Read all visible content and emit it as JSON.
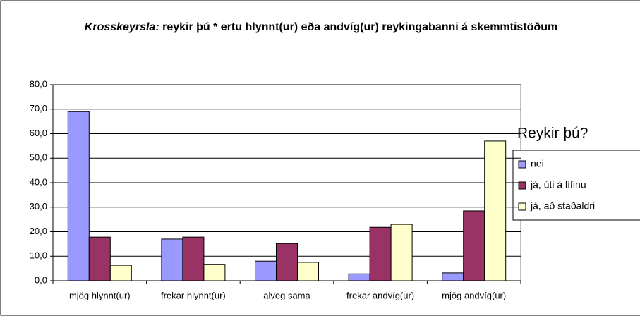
{
  "chart_data": {
    "type": "bar",
    "title": {
      "emphasis": "Krosskeyrsla:",
      "text": "reykir þú * ertu hlynnt(ur) eða andvíg(ur) reykingabanni á skemmtistöðum"
    },
    "categories": [
      "mjög hlynnt(ur)",
      "frekar hlynnt(ur)",
      "alveg sama",
      "frekar andvíg(ur)",
      "mjög andvíg(ur)"
    ],
    "legend_title": "Reykir þú?",
    "series": [
      {
        "name": "nei",
        "color": "#9999ff",
        "values": [
          69,
          17,
          8,
          2.8,
          3.2
        ]
      },
      {
        "name": "já, úti á lífinu",
        "color": "#993366",
        "values": [
          17.8,
          17.8,
          15.2,
          21.8,
          28.5
        ]
      },
      {
        "name": "já, að staðaldri",
        "color": "#ffffcc",
        "values": [
          6.3,
          6.7,
          7.5,
          23,
          57
        ]
      }
    ],
    "ylim": [
      0,
      80
    ],
    "yticks": [
      {
        "value": 0,
        "label": "0,0"
      },
      {
        "value": 10,
        "label": "10,0"
      },
      {
        "value": 20,
        "label": "20,0"
      },
      {
        "value": 30,
        "label": "30,0"
      },
      {
        "value": 40,
        "label": "40,0"
      },
      {
        "value": 50,
        "label": "50,0"
      },
      {
        "value": 60,
        "label": "60,0"
      },
      {
        "value": 70,
        "label": "70,0"
      },
      {
        "value": 80,
        "label": "80,0"
      }
    ],
    "grid": true,
    "legend": "right"
  }
}
